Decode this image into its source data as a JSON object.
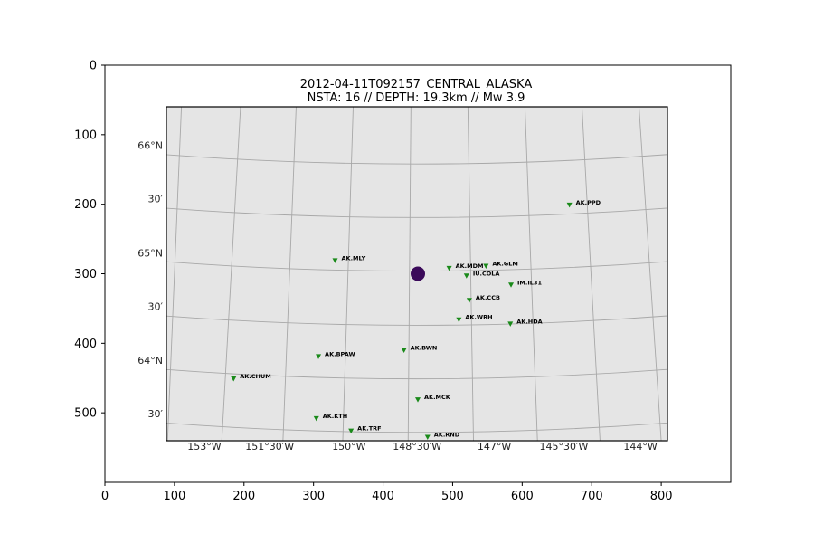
{
  "chart_data": {
    "type": "scatter",
    "title": "2012-04-11T092157_CENTRAL_ALASKA",
    "subtitle": "NSTA: 16 // DEPTH: 19.3km // Mw 3.9",
    "xlabel": "",
    "ylabel": "",
    "xlim": [
      0,
      900
    ],
    "ylim": [
      600,
      0
    ],
    "x_ticks": [
      0,
      100,
      200,
      300,
      400,
      500,
      600,
      700,
      800
    ],
    "y_ticks": [
      0,
      100,
      200,
      300,
      400,
      500
    ],
    "grid": false,
    "map_panel": {
      "x_range": [
        88,
        810
      ],
      "y_range": [
        60,
        541
      ],
      "background": "#e5e5e5",
      "graticule_color": "#a8a8a8"
    },
    "latitude_labels": [
      {
        "text": "66°N",
        "y": 115
      },
      {
        "text": "30′",
        "y": 192
      },
      {
        "text": "65°N",
        "y": 270
      },
      {
        "text": "30′",
        "y": 347
      },
      {
        "text": "64°N",
        "y": 424
      },
      {
        "text": "30′",
        "y": 501
      }
    ],
    "longitude_labels": [
      {
        "text": "153°W",
        "x": 143
      },
      {
        "text": "151°30′W",
        "x": 237
      },
      {
        "text": "150°W",
        "x": 351
      },
      {
        "text": "148°30′W",
        "x": 449
      },
      {
        "text": "147°W",
        "x": 560
      },
      {
        "text": "145°30′W",
        "x": 660
      },
      {
        "text": "144°W",
        "x": 770
      }
    ],
    "event": {
      "x": 450,
      "y": 300,
      "color": "#3b0a5a"
    },
    "station_color": "#1a8a1a",
    "stations": [
      {
        "name": "AK.PPD",
        "x": 668,
        "y": 201
      },
      {
        "name": "AK.MLY",
        "x": 331,
        "y": 281
      },
      {
        "name": "AK.MDM",
        "x": 495,
        "y": 292
      },
      {
        "name": "AK.GLM",
        "x": 548,
        "y": 289
      },
      {
        "name": "IU.COLA",
        "x": 520,
        "y": 303
      },
      {
        "name": "IM.IL31",
        "x": 584,
        "y": 316
      },
      {
        "name": "AK.CCB",
        "x": 524,
        "y": 338
      },
      {
        "name": "AK.WRH",
        "x": 509,
        "y": 366
      },
      {
        "name": "AK.HDA",
        "x": 583,
        "y": 372
      },
      {
        "name": "AK.BWN",
        "x": 430,
        "y": 410
      },
      {
        "name": "AK.BPAW",
        "x": 307,
        "y": 419
      },
      {
        "name": "AK.CHUM",
        "x": 185,
        "y": 451
      },
      {
        "name": "AK.MCK",
        "x": 450,
        "y": 481
      },
      {
        "name": "AK.KTH",
        "x": 304,
        "y": 508
      },
      {
        "name": "AK.TRF",
        "x": 354,
        "y": 526
      },
      {
        "name": "AK.RND",
        "x": 464,
        "y": 535
      }
    ]
  }
}
